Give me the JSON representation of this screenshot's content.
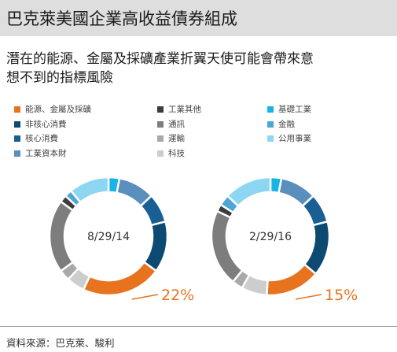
{
  "header": {
    "title": "巴克萊美國企業高收益債券組成"
  },
  "subtitle": {
    "line1": "潛在的能源、金屬及採礦產業折翼天使可能會帶來意",
    "line2": "想不到的指標風險"
  },
  "legend": [
    {
      "label": "能源、金屬及採礦",
      "color": "#e8731f"
    },
    {
      "label": "工業其他",
      "color": "#3a3d40"
    },
    {
      "label": "基礎工業",
      "color": "#17b4e5"
    },
    {
      "label": "非核心消費",
      "color": "#0d4a72"
    },
    {
      "label": "通訊",
      "color": "#7d7d7d"
    },
    {
      "label": "金融",
      "color": "#4fa6d6"
    },
    {
      "label": "核心消費",
      "color": "#1a5f94"
    },
    {
      "label": "運輸",
      "color": "#a9a9a9"
    },
    {
      "label": "公用事業",
      "color": "#8cd6f2"
    },
    {
      "label": "工業資本財",
      "color": "#5a8fbd"
    },
    {
      "label": "科技",
      "color": "#cdcdcd"
    }
  ],
  "chart_data": [
    {
      "type": "pie",
      "center_label": "8/29/14",
      "highlight": {
        "category": "能源、金屬及採礦",
        "label": "22%"
      },
      "slices": [
        {
          "category": "基礎工業",
          "value": 3,
          "color": "#17b4e5"
        },
        {
          "category": "工業資本財",
          "value": 10,
          "color": "#5a8fbd"
        },
        {
          "category": "核心消費",
          "value": 8,
          "color": "#1a5f94"
        },
        {
          "category": "非核心消費",
          "value": 14,
          "color": "#0d4a72"
        },
        {
          "category": "能源、金屬及採礦",
          "value": 22,
          "color": "#e8731f"
        },
        {
          "category": "科技",
          "value": 5,
          "color": "#cdcdcd"
        },
        {
          "category": "運輸",
          "value": 3,
          "color": "#a9a9a9"
        },
        {
          "category": "通訊",
          "value": 20,
          "color": "#7d7d7d"
        },
        {
          "category": "工業其他",
          "value": 2,
          "color": "#3a3d40"
        },
        {
          "category": "金融",
          "value": 2,
          "color": "#4fa6d6"
        },
        {
          "category": "公用事業",
          "value": 11,
          "color": "#8cd6f2"
        }
      ]
    },
    {
      "type": "pie",
      "center_label": "2/29/16",
      "highlight": {
        "category": "能源、金屬及採礦",
        "label": "15%"
      },
      "slices": [
        {
          "category": "基礎工業",
          "value": 3,
          "color": "#17b4e5"
        },
        {
          "category": "工業資本財",
          "value": 10,
          "color": "#5a8fbd"
        },
        {
          "category": "核心消費",
          "value": 8,
          "color": "#1a5f94"
        },
        {
          "category": "非核心消費",
          "value": 15,
          "color": "#0d4a72"
        },
        {
          "category": "能源、金屬及採礦",
          "value": 15,
          "color": "#e8731f"
        },
        {
          "category": "科技",
          "value": 7,
          "color": "#cdcdcd"
        },
        {
          "category": "運輸",
          "value": 3,
          "color": "#a9a9a9"
        },
        {
          "category": "通訊",
          "value": 21,
          "color": "#7d7d7d"
        },
        {
          "category": "工業其他",
          "value": 2,
          "color": "#3a3d40"
        },
        {
          "category": "金融",
          "value": 3,
          "color": "#4fa6d6"
        },
        {
          "category": "公用事業",
          "value": 13,
          "color": "#8cd6f2"
        }
      ]
    }
  ],
  "source": "資料來源：巴克萊、駿利"
}
